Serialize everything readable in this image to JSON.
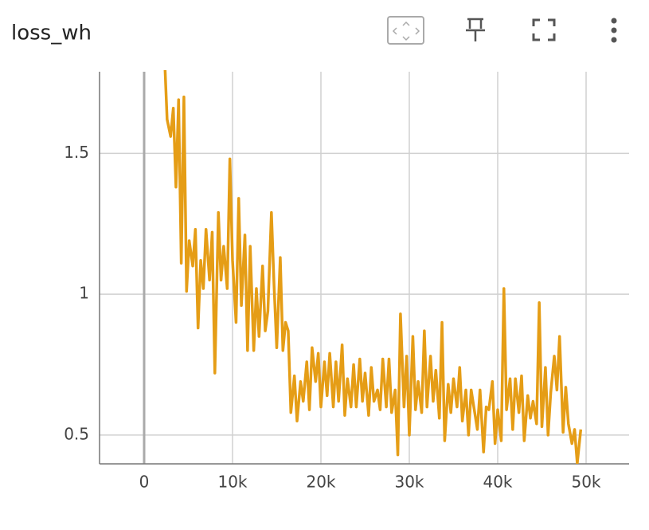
{
  "chart_data": {
    "type": "line",
    "title": "loss_wh",
    "color": "#e59d16",
    "grid": true,
    "xlim": [
      -5045,
      54865
    ],
    "ylim": [
      0.398,
      1.795
    ],
    "xticks": [
      0,
      {
        "value": 10000,
        "label": "10k"
      },
      {
        "value": 20000,
        "label": "20k"
      },
      {
        "value": 30000,
        "label": "30k"
      },
      {
        "value": 40000,
        "label": "40k"
      },
      {
        "value": 50000,
        "label": "50k"
      }
    ],
    "yticks": [
      0.5,
      1,
      1.5
    ],
    "x": [
      2300,
      2600,
      3000,
      3300,
      3600,
      3900,
      4200,
      4500,
      4800,
      5100,
      5500,
      5800,
      6100,
      6400,
      6700,
      7000,
      7400,
      7700,
      8000,
      8400,
      8700,
      9000,
      9400,
      9700,
      10000,
      10400,
      10700,
      11000,
      11400,
      11700,
      12000,
      12400,
      12700,
      13000,
      13400,
      13700,
      14000,
      14400,
      14700,
      15000,
      15400,
      15700,
      16000,
      16300,
      16600,
      17000,
      17300,
      17700,
      18000,
      18400,
      18700,
      19000,
      19400,
      19700,
      20000,
      20400,
      20700,
      21000,
      21400,
      21700,
      22000,
      22400,
      22700,
      23000,
      23400,
      23700,
      24000,
      24400,
      24700,
      25000,
      25400,
      25700,
      26000,
      26400,
      26700,
      27000,
      27400,
      27700,
      28000,
      28400,
      28700,
      29000,
      29400,
      29700,
      30000,
      30400,
      30700,
      31000,
      31400,
      31700,
      32000,
      32400,
      32700,
      33000,
      33400,
      33700,
      34000,
      34400,
      34700,
      35000,
      35400,
      35700,
      36000,
      36400,
      36700,
      37000,
      37400,
      37700,
      38000,
      38400,
      38700,
      39000,
      39400,
      39700,
      40000,
      40400,
      40700,
      41000,
      41400,
      41700,
      42000,
      42400,
      42700,
      43000,
      43400,
      43700,
      44000,
      44400,
      44700,
      45000,
      45400,
      45700,
      46000,
      46400,
      46700,
      47000,
      47400,
      47700,
      48000,
      48400,
      48700,
      49000,
      49400
    ],
    "values": [
      1.85,
      1.62,
      1.56,
      1.66,
      1.38,
      1.69,
      1.11,
      1.7,
      1.01,
      1.19,
      1.1,
      1.23,
      0.88,
      1.12,
      1.02,
      1.23,
      1.05,
      1.22,
      0.72,
      1.29,
      1.05,
      1.17,
      1.02,
      1.48,
      1.12,
      0.9,
      1.34,
      0.96,
      1.21,
      0.8,
      1.17,
      0.8,
      1.02,
      0.85,
      1.1,
      0.87,
      0.94,
      1.29,
      1.03,
      0.81,
      1.13,
      0.8,
      0.9,
      0.87,
      0.58,
      0.71,
      0.55,
      0.69,
      0.62,
      0.76,
      0.59,
      0.81,
      0.69,
      0.79,
      0.6,
      0.76,
      0.64,
      0.79,
      0.6,
      0.76,
      0.62,
      0.82,
      0.57,
      0.7,
      0.6,
      0.75,
      0.6,
      0.77,
      0.62,
      0.72,
      0.57,
      0.74,
      0.62,
      0.66,
      0.59,
      0.77,
      0.6,
      0.77,
      0.58,
      0.66,
      0.43,
      0.93,
      0.6,
      0.78,
      0.5,
      0.85,
      0.59,
      0.69,
      0.58,
      0.87,
      0.6,
      0.78,
      0.62,
      0.73,
      0.56,
      0.9,
      0.48,
      0.68,
      0.58,
      0.7,
      0.6,
      0.74,
      0.55,
      0.66,
      0.5,
      0.66,
      0.58,
      0.52,
      0.66,
      0.44,
      0.6,
      0.59,
      0.69,
      0.47,
      0.59,
      0.48,
      1.02,
      0.59,
      0.7,
      0.52,
      0.7,
      0.58,
      0.71,
      0.48,
      0.64,
      0.56,
      0.62,
      0.54,
      0.97,
      0.53,
      0.74,
      0.5,
      0.65,
      0.78,
      0.66,
      0.85,
      0.51,
      0.67,
      0.54,
      0.47,
      0.52,
      0.4,
      0.52
    ]
  }
}
